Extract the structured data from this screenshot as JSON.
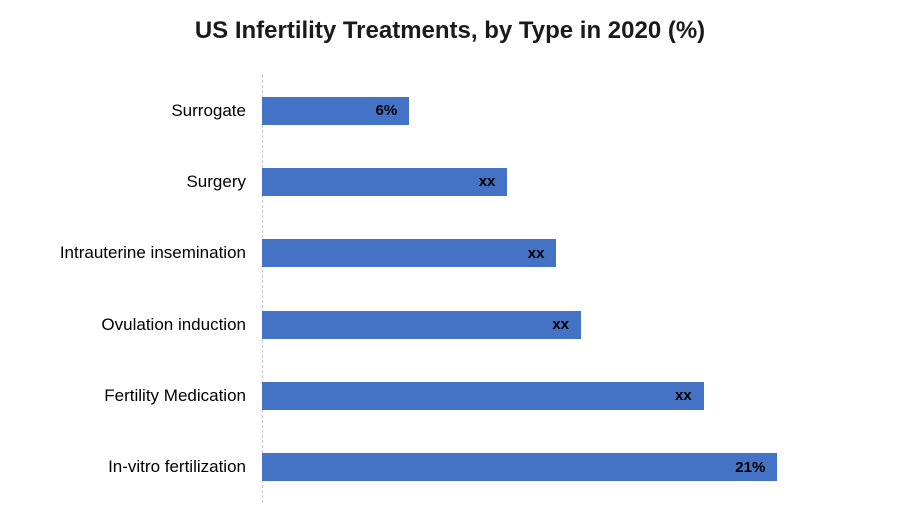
{
  "chart_data": {
    "type": "bar",
    "orientation": "horizontal",
    "title": "US Infertility Treatments, by Type in 2020 (%)",
    "categories": [
      "Surrogate",
      "Surgery",
      "Intrauterine insemination",
      "Ovulation induction",
      "Fertility Medication",
      "In-vitro fertilization"
    ],
    "values": [
      6,
      10,
      12,
      13,
      18,
      21
    ],
    "value_labels": [
      "6%",
      "xx",
      "xx",
      "xx",
      "xx",
      "21%"
    ],
    "xlim": [
      0,
      26
    ],
    "bar_color": "#4472C4",
    "axis_line_color": "#C9C9C9",
    "grid": false,
    "legend": false
  }
}
